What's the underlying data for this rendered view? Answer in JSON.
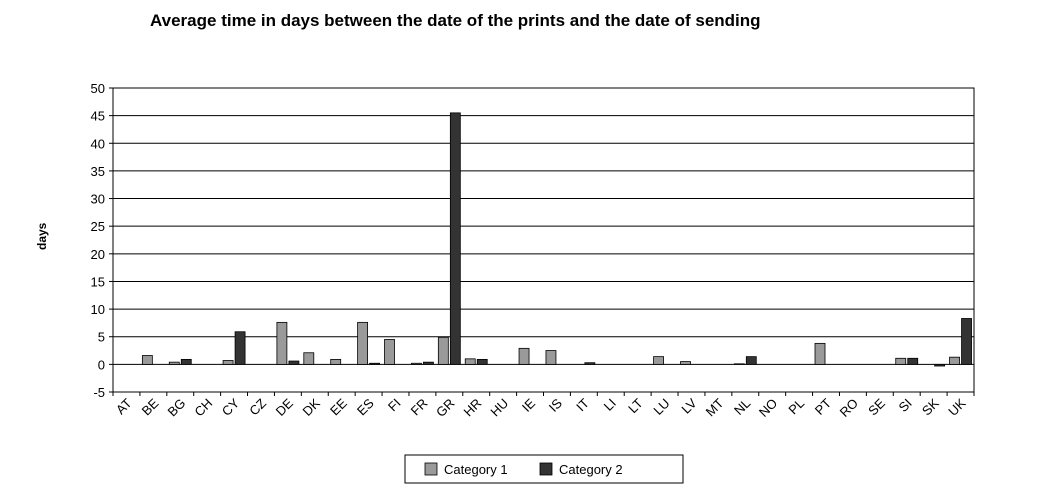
{
  "chart_data": {
    "type": "bar",
    "title": "Average time in days between the date of the prints and the date of sending",
    "ylabel": "days",
    "xlabel": "",
    "ylim": [
      -5,
      50
    ],
    "yticks": [
      -5,
      0,
      5,
      10,
      15,
      20,
      25,
      30,
      35,
      40,
      45,
      50
    ],
    "grid": true,
    "legend_position": "bottom",
    "categories": [
      "AT",
      "BE",
      "BG",
      "CH",
      "CY",
      "CZ",
      "DE",
      "DK",
      "EE",
      "ES",
      "FI",
      "FR",
      "GR",
      "HR",
      "HU",
      "IE",
      "IS",
      "IT",
      "LI",
      "LT",
      "LU",
      "LV",
      "MT",
      "NL",
      "NO",
      "PL",
      "PT",
      "RO",
      "SE",
      "SI",
      "SK",
      "UK"
    ],
    "series": [
      {
        "name": "Category 1",
        "color": "#9a9a9a",
        "values": [
          0,
          1.6,
          0.4,
          0,
          0.7,
          0,
          7.6,
          2.1,
          0.9,
          7.6,
          4.5,
          0.2,
          4.9,
          1.0,
          0,
          2.9,
          2.5,
          0,
          0,
          0,
          1.4,
          0.5,
          0,
          0.1,
          0,
          0,
          3.8,
          0,
          0,
          1.1,
          0,
          1.3
        ]
      },
      {
        "name": "Category 2",
        "color": "#333333",
        "values": [
          0,
          0,
          0.9,
          0,
          5.9,
          0,
          0.6,
          0,
          0,
          0.2,
          0,
          0.4,
          45.5,
          0.9,
          0,
          0,
          0,
          0.3,
          0,
          0,
          0,
          0,
          0,
          1.4,
          0,
          0,
          0,
          0,
          0,
          1.1,
          -0.3,
          8.3
        ]
      }
    ]
  }
}
